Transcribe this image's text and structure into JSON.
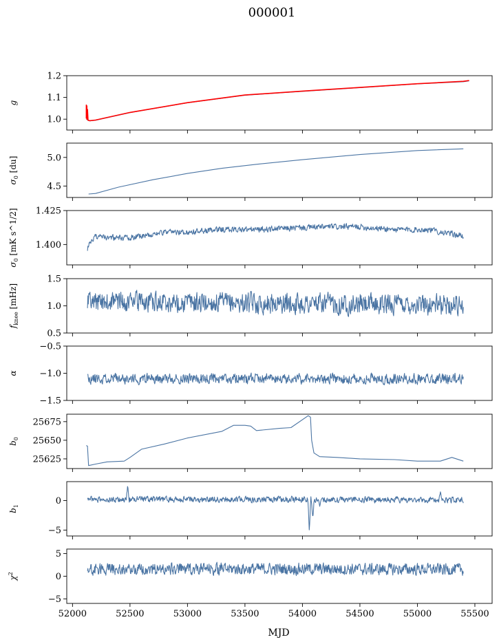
{
  "figure": {
    "title": "000001",
    "xlabel": "MJD"
  },
  "colors": {
    "line": "#4a74a3",
    "fit": "#ff0000",
    "axis": "#000000"
  },
  "chart_data": {
    "type": "line",
    "title": "000001",
    "xlabel": "MJD",
    "xlim": [
      51950,
      55650
    ],
    "xticks": [
      52000,
      52500,
      53000,
      53500,
      54000,
      54500,
      55000,
      55500
    ],
    "grid": false,
    "panels": [
      {
        "id": "g",
        "ylabel_base": "g",
        "ylabel_sub": "",
        "ylabel_sup": "",
        "ylabel_unit": "",
        "ylim": [
          0.95,
          1.2
        ],
        "yticks": [
          1.0,
          1.1,
          1.2
        ],
        "ytick_labels": [
          "1.0",
          "1.1",
          "1.2"
        ],
        "series": [
          {
            "style": "line",
            "color": "#4a74a3",
            "x": [
              52120,
              52150,
              52200,
              52500,
              53000,
              53500,
              54000,
              54500,
              55000,
              55400,
              55450
            ],
            "y": [
              1.0,
              0.992,
              0.995,
              1.03,
              1.075,
              1.11,
              1.128,
              1.145,
              1.162,
              1.172,
              1.176
            ]
          },
          {
            "style": "line",
            "color": "#ff0000",
            "x": [
              52120,
              52120,
              52125,
              52125,
              52130,
              52135,
              52150,
              52200,
              52500,
              53000,
              53500,
              54000,
              54500,
              55000,
              55400,
              55450
            ],
            "y": [
              1.003,
              1.065,
              1.06,
              1.0,
              1.045,
              0.995,
              0.993,
              0.996,
              1.031,
              1.076,
              1.111,
              1.129,
              1.146,
              1.163,
              1.174,
              1.178
            ]
          }
        ]
      },
      {
        "id": "sigma0",
        "ylabel_base": "σ",
        "ylabel_sub": "0",
        "ylabel_sup": "",
        "ylabel_unit": "[du]",
        "ylim": [
          4.3,
          5.25
        ],
        "yticks": [
          4.5,
          5.0
        ],
        "ytick_labels": [
          "4.5",
          "5.0"
        ],
        "series": [
          {
            "style": "line",
            "color": "#4a74a3",
            "x": [
              52140,
              52200,
              52400,
              52700,
              53000,
              53300,
              53600,
              54000,
              54500,
              55000,
              55400
            ],
            "y": [
              4.36,
              4.37,
              4.48,
              4.61,
              4.72,
              4.81,
              4.88,
              4.96,
              5.05,
              5.12,
              5.15
            ]
          }
        ]
      },
      {
        "id": "sigma0_rate",
        "ylabel_base": "σ",
        "ylabel_sub": "0",
        "ylabel_sup": "",
        "ylabel_unit": "[mK s^1/2]",
        "ylim": [
          1.385,
          1.425
        ],
        "yticks": [
          1.4,
          1.425
        ],
        "ytick_labels": [
          "1.400",
          "1.425"
        ],
        "series": [
          {
            "style": "noisy",
            "color": "#4a74a3",
            "x": [
              52130,
              52150,
              52200,
              52300,
              52500,
              52800,
              53000,
              53300,
              53600,
              53900,
              54200,
              54500,
              54800,
              55100,
              55400
            ],
            "y": [
              1.396,
              1.402,
              1.406,
              1.405,
              1.405,
              1.409,
              1.409,
              1.411,
              1.411,
              1.412,
              1.413,
              1.413,
              1.411,
              1.411,
              1.406
            ],
            "noise": 0.0015,
            "seed": 3
          }
        ]
      },
      {
        "id": "fknee",
        "ylabel_base": "f",
        "ylabel_sub": "knee",
        "ylabel_sup": "",
        "ylabel_unit": "[mHz]",
        "ylim": [
          0.5,
          1.5
        ],
        "yticks": [
          0.5,
          1.0,
          1.5
        ],
        "ytick_labels": [
          "0.5",
          "1.0",
          "1.5"
        ],
        "series": [
          {
            "style": "noisy",
            "color": "#4a74a3",
            "x": [
              52130,
              53000,
              54000,
              55400
            ],
            "y": [
              1.08,
              1.06,
              1.04,
              1.02
            ],
            "noise": 0.13,
            "seed": 7
          }
        ]
      },
      {
        "id": "alpha",
        "ylabel_base": "α",
        "ylabel_sub": "",
        "ylabel_sup": "",
        "ylabel_unit": "",
        "ylim": [
          -1.5,
          -0.5
        ],
        "yticks": [
          -1.5,
          -1.0,
          -0.5
        ],
        "ytick_labels": [
          "−1.5",
          "−1.0",
          "−0.5"
        ],
        "series": [
          {
            "style": "noisy",
            "color": "#4a74a3",
            "x": [
              52130,
              53000,
              54000,
              55400
            ],
            "y": [
              -1.1,
              -1.1,
              -1.1,
              -1.1
            ],
            "noise": 0.065,
            "seed": 11
          }
        ]
      },
      {
        "id": "b0",
        "ylabel_base": "b",
        "ylabel_sub": "0",
        "ylabel_sup": "",
        "ylabel_unit": "",
        "ylim": [
          25612,
          25685
        ],
        "yticks": [
          25625,
          25650,
          25675
        ],
        "ytick_labels": [
          "25625",
          "25650",
          "25675"
        ],
        "series": [
          {
            "style": "line",
            "color": "#4a74a3",
            "x": [
              52120,
              52130,
              52140,
              52200,
              52300,
              52450,
              52500,
              52600,
              52800,
              53000,
              53300,
              53400,
              53500,
              53550,
              53600,
              53800,
              53900,
              54050,
              54070,
              54080,
              54100,
              54150,
              54300,
              54500,
              54800,
              55000,
              55200,
              55300,
              55400
            ],
            "y": [
              25643,
              25642,
              25616,
              25618,
              25621,
              25622,
              25627,
              25638,
              25645,
              25653,
              25662,
              25670,
              25670,
              25669,
              25663,
              25666,
              25667,
              25683,
              25681,
              25650,
              25633,
              25628,
              25627,
              25625,
              25624,
              25622,
              25622,
              25627,
              25622
            ]
          }
        ]
      },
      {
        "id": "b1",
        "ylabel_base": "b",
        "ylabel_sub": "1",
        "ylabel_sup": "",
        "ylabel_unit": "",
        "ylim": [
          -6,
          3.2
        ],
        "yticks": [
          -5,
          0
        ],
        "ytick_labels": [
          "−5",
          "0"
        ],
        "series": [
          {
            "style": "noisy",
            "color": "#4a74a3",
            "x": [
              52130,
              53000,
              54000,
              55400
            ],
            "y": [
              0.2,
              0.2,
              0.2,
              0.1
            ],
            "noise": 0.35,
            "seed": 19,
            "features": [
              {
                "x": 52480,
                "y": 2.6
              },
              {
                "x": 54060,
                "y": -5.3
              },
              {
                "x": 54090,
                "y": -3.0
              },
              {
                "x": 54150,
                "y": -1.0
              },
              {
                "x": 55200,
                "y": 1.5
              }
            ]
          }
        ]
      },
      {
        "id": "chi2",
        "ylabel_base": "χ",
        "ylabel_sub": "",
        "ylabel_sup": "2",
        "ylabel_unit": "",
        "ylim": [
          -6,
          6
        ],
        "yticks": [
          -5,
          0,
          5
        ],
        "ytick_labels": [
          "−5",
          "0",
          "5"
        ],
        "series": [
          {
            "style": "noisy",
            "color": "#4a74a3",
            "x": [
              52130,
              53000,
              54000,
              55400
            ],
            "y": [
              1.5,
              1.6,
              1.6,
              1.5
            ],
            "noise": 0.9,
            "seed": 23
          }
        ]
      }
    ]
  }
}
